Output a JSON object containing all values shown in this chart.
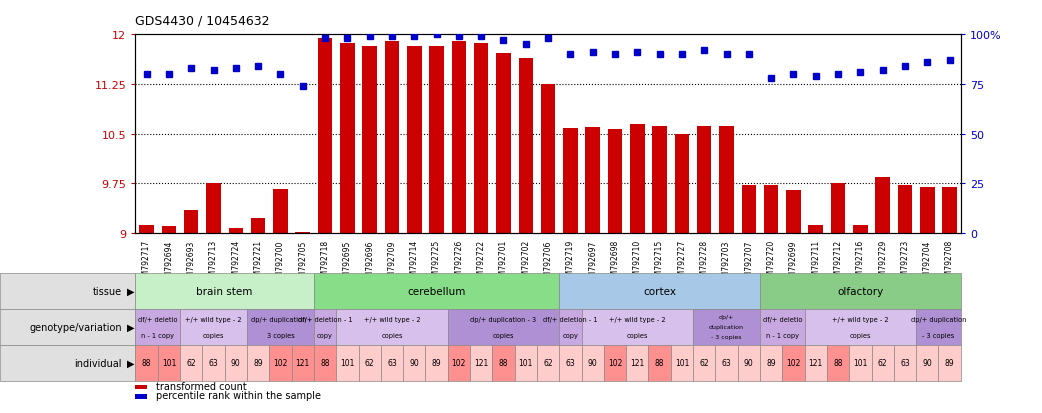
{
  "title": "GDS4430 / 10454632",
  "samples": [
    "GSM792717",
    "GSM792694",
    "GSM792693",
    "GSM792713",
    "GSM792724",
    "GSM792721",
    "GSM792700",
    "GSM792705",
    "GSM792718",
    "GSM792695",
    "GSM792696",
    "GSM792709",
    "GSM792714",
    "GSM792725",
    "GSM792726",
    "GSM792722",
    "GSM792701",
    "GSM792702",
    "GSM792706",
    "GSM792719",
    "GSM792697",
    "GSM792698",
    "GSM792710",
    "GSM792715",
    "GSM792727",
    "GSM792728",
    "GSM792703",
    "GSM792707",
    "GSM792720",
    "GSM792699",
    "GSM792711",
    "GSM792712",
    "GSM792716",
    "GSM792729",
    "GSM792723",
    "GSM792704",
    "GSM792708"
  ],
  "bar_values": [
    9.12,
    9.1,
    9.35,
    9.76,
    9.07,
    9.23,
    9.66,
    9.01,
    11.95,
    11.87,
    11.82,
    11.9,
    11.82,
    11.82,
    11.9,
    11.87,
    11.72,
    11.64,
    11.25,
    10.58,
    10.6,
    10.57,
    10.65,
    10.62,
    10.5,
    10.62,
    10.62,
    9.72,
    9.72,
    9.65,
    9.12,
    9.76,
    9.12,
    9.85,
    9.72,
    9.7,
    9.7
  ],
  "dot_values": [
    80,
    80,
    83,
    82,
    83,
    84,
    80,
    74,
    98,
    98,
    99,
    99,
    99,
    100,
    99,
    99,
    97,
    95,
    98,
    90,
    91,
    90,
    91,
    90,
    90,
    92,
    90,
    90,
    78,
    80,
    79,
    80,
    81,
    82,
    84,
    86,
    87
  ],
  "ylim_left": [
    9.0,
    12.0
  ],
  "ylim_right": [
    0,
    100
  ],
  "yticks_left": [
    9.0,
    9.75,
    10.5,
    11.25,
    12.0
  ],
  "yticks_right": [
    0,
    25,
    50,
    75,
    100
  ],
  "hlines": [
    9.75,
    10.5,
    11.25
  ],
  "bar_color": "#cc0000",
  "dot_color": "#0000cc",
  "tissue_groups": [
    {
      "name": "brain stem",
      "start": 0,
      "end": 8,
      "color": "#c8f0c8"
    },
    {
      "name": "cerebellum",
      "start": 8,
      "end": 19,
      "color": "#88dd88"
    },
    {
      "name": "cortex",
      "start": 19,
      "end": 28,
      "color": "#a8c8e8"
    },
    {
      "name": "olfactory",
      "start": 28,
      "end": 37,
      "color": "#88cc88"
    }
  ],
  "genotype_groups": [
    {
      "label": "df/+ deletio\nn - 1 copy",
      "start": 0,
      "end": 2,
      "color": "#c8a8e0"
    },
    {
      "label": "+/+ wild type - 2\ncopies",
      "start": 2,
      "end": 5,
      "color": "#d8c0ec"
    },
    {
      "label": "dp/+ duplication -\n3 copies",
      "start": 5,
      "end": 8,
      "color": "#b090d4"
    },
    {
      "label": "df/+ deletion - 1\ncopy",
      "start": 8,
      "end": 9,
      "color": "#c8a8e0"
    },
    {
      "label": "+/+ wild type - 2\ncopies",
      "start": 9,
      "end": 14,
      "color": "#d8c0ec"
    },
    {
      "label": "dp/+ duplication - 3\ncopies",
      "start": 14,
      "end": 19,
      "color": "#b090d4"
    },
    {
      "label": "df/+ deletion - 1\ncopy",
      "start": 19,
      "end": 20,
      "color": "#c8a8e0"
    },
    {
      "label": "+/+ wild type - 2\ncopies",
      "start": 20,
      "end": 25,
      "color": "#d8c0ec"
    },
    {
      "label": "dp/+\nduplication\n- 3 copies",
      "start": 25,
      "end": 28,
      "color": "#b090d4"
    },
    {
      "label": "df/+ deletio\nn - 1 copy",
      "start": 28,
      "end": 30,
      "color": "#c8a8e0"
    },
    {
      "label": "+/+ wild type - 2\ncopies",
      "start": 30,
      "end": 35,
      "color": "#d8c0ec"
    },
    {
      "label": "dp/+ duplication\n- 3 copies",
      "start": 35,
      "end": 37,
      "color": "#b090d4"
    }
  ],
  "individual_data": [
    {
      "label": "88",
      "color": "#ff9090"
    },
    {
      "label": "101",
      "color": "#ff9090"
    },
    {
      "label": "62",
      "color": "#ffcccc"
    },
    {
      "label": "63",
      "color": "#ffcccc"
    },
    {
      "label": "90",
      "color": "#ffcccc"
    },
    {
      "label": "89",
      "color": "#ffcccc"
    },
    {
      "label": "102",
      "color": "#ff9090"
    },
    {
      "label": "121",
      "color": "#ff9090"
    },
    {
      "label": "88",
      "color": "#ff9090"
    },
    {
      "label": "101",
      "color": "#ffcccc"
    },
    {
      "label": "62",
      "color": "#ffcccc"
    },
    {
      "label": "63",
      "color": "#ffcccc"
    },
    {
      "label": "90",
      "color": "#ffcccc"
    },
    {
      "label": "89",
      "color": "#ffcccc"
    },
    {
      "label": "102",
      "color": "#ff9090"
    },
    {
      "label": "121",
      "color": "#ffcccc"
    },
    {
      "label": "88",
      "color": "#ff9090"
    },
    {
      "label": "101",
      "color": "#ffcccc"
    },
    {
      "label": "62",
      "color": "#ffcccc"
    },
    {
      "label": "63",
      "color": "#ffcccc"
    },
    {
      "label": "90",
      "color": "#ffcccc"
    },
    {
      "label": "102",
      "color": "#ff9090"
    },
    {
      "label": "121",
      "color": "#ffcccc"
    },
    {
      "label": "88",
      "color": "#ff9090"
    },
    {
      "label": "101",
      "color": "#ffcccc"
    },
    {
      "label": "62",
      "color": "#ffcccc"
    },
    {
      "label": "63",
      "color": "#ffcccc"
    },
    {
      "label": "90",
      "color": "#ffcccc"
    },
    {
      "label": "89",
      "color": "#ffcccc"
    },
    {
      "label": "102",
      "color": "#ff9090"
    },
    {
      "label": "121",
      "color": "#ffcccc"
    },
    {
      "label": "88",
      "color": "#ff9090"
    },
    {
      "label": "101",
      "color": "#ffcccc"
    },
    {
      "label": "62",
      "color": "#ffcccc"
    },
    {
      "label": "63",
      "color": "#ffcccc"
    },
    {
      "label": "90",
      "color": "#ffcccc"
    },
    {
      "label": "89",
      "color": "#ffcccc"
    }
  ],
  "legend": [
    {
      "color": "#cc0000",
      "label": "transformed count"
    },
    {
      "color": "#0000cc",
      "label": "percentile rank within the sample"
    }
  ]
}
